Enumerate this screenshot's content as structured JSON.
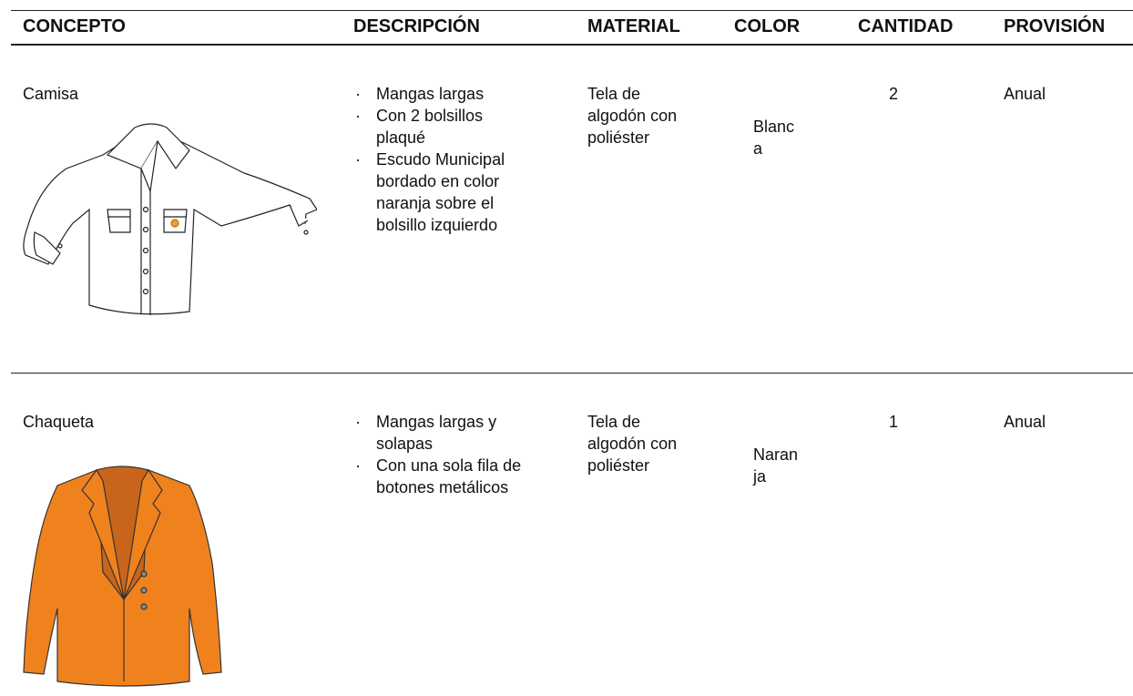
{
  "table": {
    "headers": [
      "CONCEPTO",
      "DESCRIPCIÓN",
      "MATERIAL",
      "COLOR",
      "CANTIDAD",
      "PROVISIÓN"
    ],
    "rows": [
      {
        "concepto": "Camisa",
        "descripcion": [
          "Mangas largas",
          "Con 2 bolsillos plaqué",
          "Escudo Municipal bordado en color naranja sobre el bolsillo izquierdo"
        ],
        "material": "Tela de algodón con poliéster",
        "color": "Blanca",
        "cantidad": 2,
        "provision": "Anual"
      },
      {
        "concepto": "Chaqueta",
        "descripcion": [
          "Mangas largas y solapas",
          "Con una sola fila de botones metálicos"
        ],
        "material": "Tela de algodón con poliéster",
        "color": "Naranja",
        "cantidad": 1,
        "provision": "Anual"
      }
    ]
  }
}
